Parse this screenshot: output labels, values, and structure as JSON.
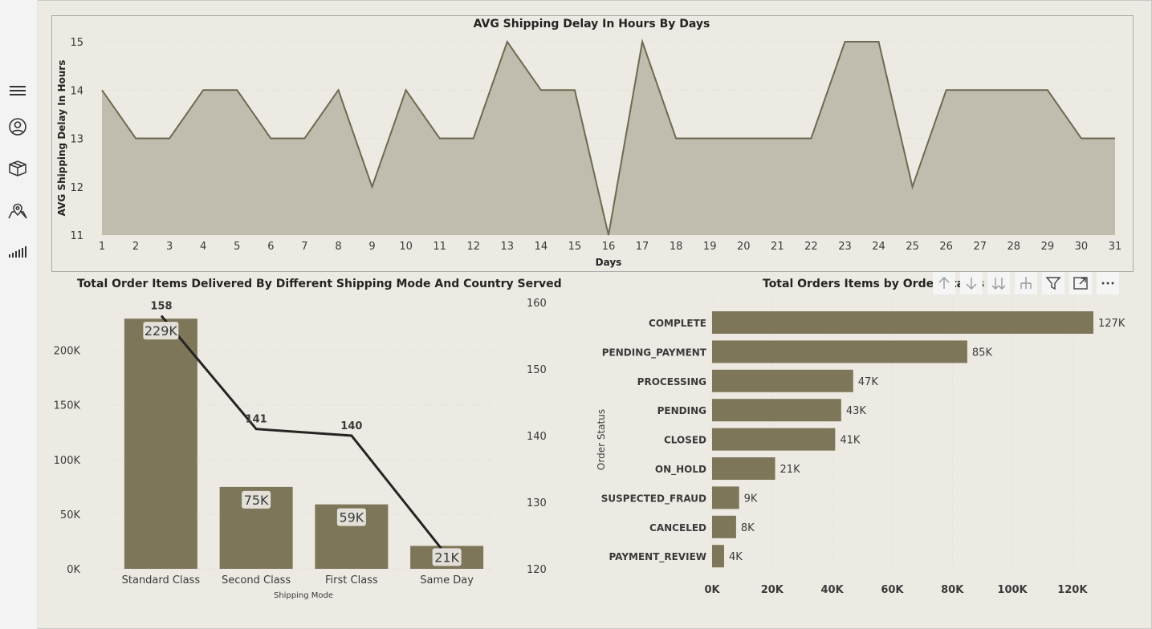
{
  "nav": {
    "items": [
      {
        "icon": "hamburger-menu-icon"
      },
      {
        "icon": "user-icon"
      },
      {
        "icon": "package-icon"
      },
      {
        "icon": "map-pin-icon"
      },
      {
        "icon": "signal-bars-icon"
      }
    ]
  },
  "toolbar": {
    "items": [
      {
        "icon": "drill-up-icon"
      },
      {
        "icon": "drill-down-icon"
      },
      {
        "icon": "go-to-next-level-icon"
      },
      {
        "icon": "expand-hierarchy-icon"
      },
      {
        "icon": "filter-icon"
      },
      {
        "icon": "focus-mode-icon"
      },
      {
        "icon": "more-options-icon"
      }
    ]
  },
  "colors": {
    "bar": "#7e7658",
    "area": "#c1bdae",
    "area_line": "#6e6a4f",
    "line": "#252423",
    "background": "#eceae3"
  },
  "chart_data": [
    {
      "type": "area",
      "title": "AVG Shipping Delay In Hours By Days",
      "xlabel": "Days",
      "ylabel": "AVG Shipping Delay In Hours",
      "x": [
        1,
        2,
        3,
        4,
        5,
        6,
        7,
        8,
        9,
        10,
        11,
        12,
        13,
        14,
        15,
        16,
        17,
        18,
        19,
        20,
        21,
        22,
        23,
        24,
        25,
        26,
        27,
        28,
        29,
        30,
        31
      ],
      "values": [
        14,
        13,
        13,
        14,
        14,
        13,
        13,
        14,
        12,
        14,
        13,
        13,
        15,
        14,
        14,
        11,
        15,
        13,
        13,
        13,
        13,
        13,
        15,
        15,
        12,
        14,
        14,
        14,
        14,
        13,
        13
      ],
      "ylim": [
        11,
        15
      ],
      "yticks": [
        11,
        12,
        13,
        14,
        15
      ],
      "grid": true
    },
    {
      "type": "bar",
      "title": "Total Order Items Delivered By Different Shipping Mode And Country Served",
      "xlabel": "Shipping Mode",
      "categories": [
        "Standard Class",
        "Second Class",
        "First Class",
        "Same Day"
      ],
      "series": [
        {
          "values": [
            229000,
            75000,
            59000,
            21000
          ],
          "labels": [
            "229K",
            "75K",
            "59K",
            "21K"
          ]
        },
        {
          "type": "line",
          "values": [
            158,
            141,
            140,
            122
          ],
          "labels": [
            "158",
            "141",
            "140",
            ""
          ]
        }
      ],
      "ylim": [
        0,
        235000
      ],
      "yticks": [
        0,
        50000,
        100000,
        150000,
        200000
      ],
      "yticklabels": [
        "0K",
        "50K",
        "100K",
        "150K",
        "200K"
      ],
      "y2lim": [
        120,
        160
      ],
      "y2ticks": [
        120,
        130,
        140,
        150,
        160
      ]
    },
    {
      "type": "bar",
      "orientation": "horizontal",
      "title": "Total Orders Items by Order Status",
      "ylabel": "Order Status",
      "categories": [
        "COMPLETE",
        "PENDING_PAYMENT",
        "PROCESSING",
        "PENDING",
        "CLOSED",
        "ON_HOLD",
        "SUSPECTED_FRAUD",
        "CANCELED",
        "PAYMENT_REVIEW"
      ],
      "values": [
        127000,
        85000,
        47000,
        43000,
        41000,
        21000,
        9000,
        8000,
        4000
      ],
      "labels": [
        "127K",
        "85K",
        "47K",
        "43K",
        "41K",
        "21K",
        "9K",
        "8K",
        "4K"
      ],
      "xlim": [
        0,
        127000
      ],
      "xticks": [
        0,
        20000,
        40000,
        60000,
        80000,
        100000,
        120000
      ],
      "xticklabels": [
        "0K",
        "20K",
        "40K",
        "60K",
        "80K",
        "100K",
        "120K"
      ]
    }
  ]
}
